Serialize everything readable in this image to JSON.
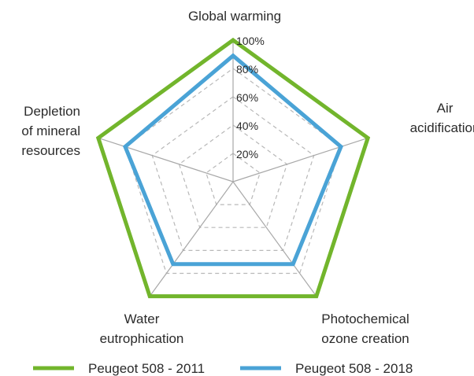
{
  "chart_data": {
    "type": "radar",
    "axes": [
      [
        "Global warming"
      ],
      [
        "Air",
        "acidification"
      ],
      [
        "Photochemical",
        "ozone creation"
      ],
      [
        "Water",
        "eutrophication"
      ],
      [
        "Depletion",
        "of mineral",
        "resources"
      ]
    ],
    "rlim": [
      0,
      100
    ],
    "ticks": [
      "20%",
      "40%",
      "60%",
      "80%",
      "100%"
    ],
    "tick_values": [
      20,
      40,
      60,
      80,
      100
    ],
    "series": [
      {
        "name": "Peugeot 508 - 2011",
        "values": [
          100,
          100,
          100,
          100,
          100
        ],
        "color": "#72b52c"
      },
      {
        "name": "Peugeot 508 - 2018",
        "values": [
          89,
          80,
          72,
          72,
          80
        ],
        "color": "#4aa3d6"
      }
    ],
    "grid": true,
    "grid_color": "#b8b8b8",
    "legend": "bottom"
  }
}
